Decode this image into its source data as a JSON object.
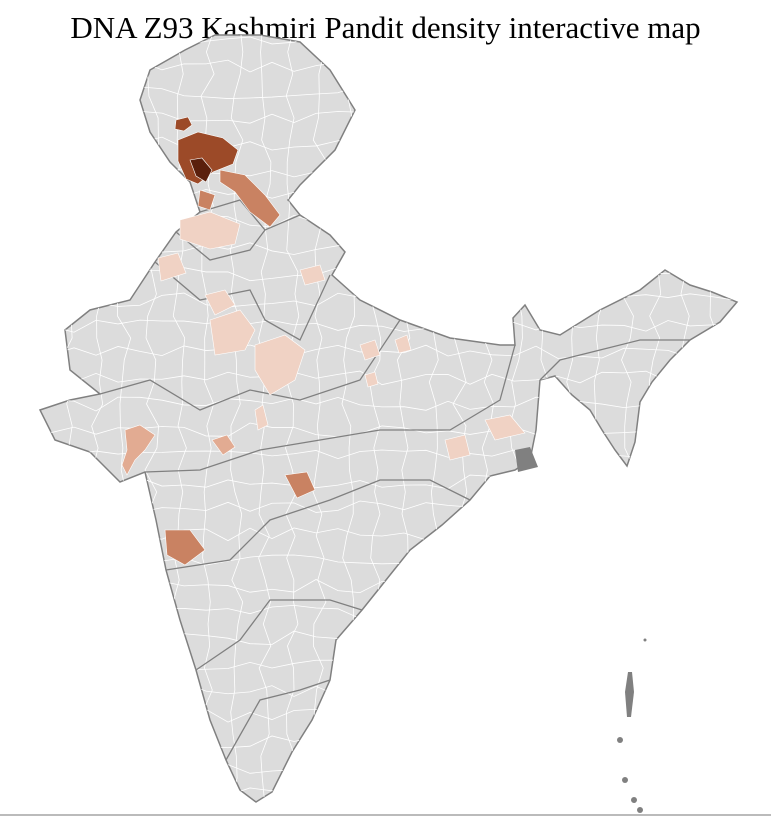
{
  "title": "DNA Z93 Kashmiri Pandit density interactive map",
  "colors": {
    "base_fill": "#dcdcdc",
    "district_border": "#ffffff",
    "state_border": "#808080",
    "density_low": "#f0d2c4",
    "density_mid": "#e2ab92",
    "density_high": "#c98262",
    "density_very_high": "#9c4a28",
    "density_max": "#5a1f0c",
    "islands": "#808080"
  }
}
